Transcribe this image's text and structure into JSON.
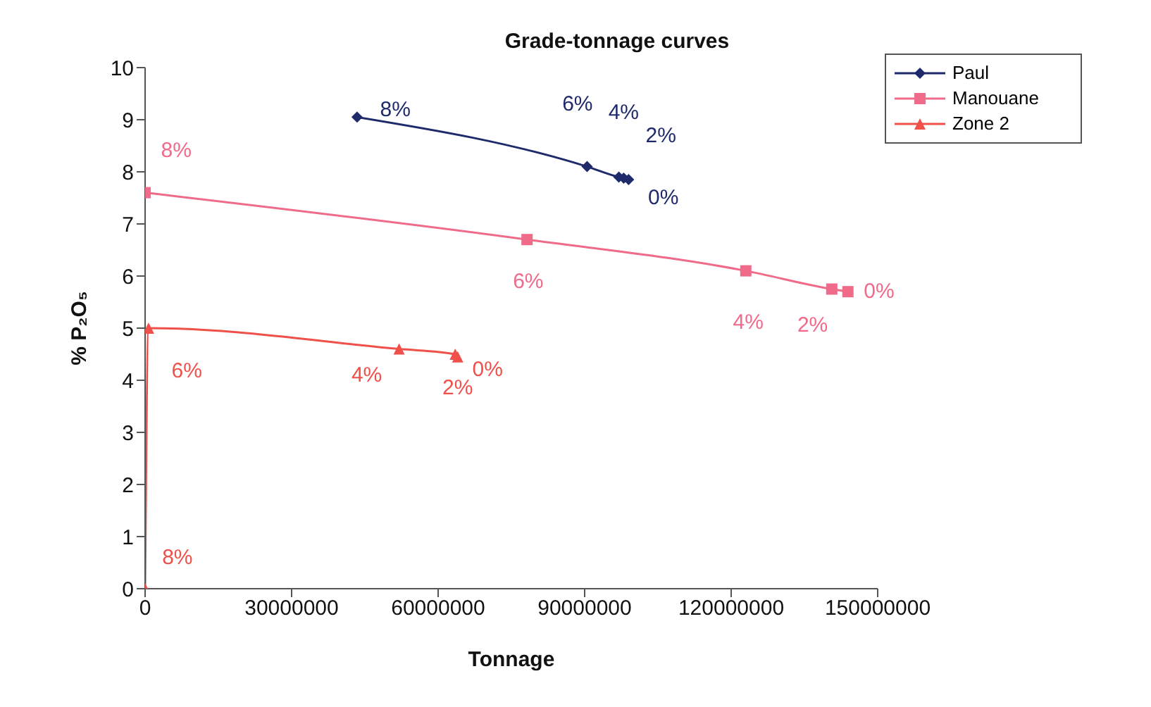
{
  "chart_data": {
    "type": "line",
    "title": "Grade-tonnage curves",
    "xlabel": "Tonnage",
    "ylabel": "% P₂O₅",
    "xlim": [
      0,
      150000000
    ],
    "xticks": [
      0,
      30000000,
      60000000,
      90000000,
      120000000,
      150000000
    ],
    "ylim": [
      0,
      10
    ],
    "yticks": [
      0,
      1,
      2,
      3,
      4,
      5,
      6,
      7,
      8,
      9,
      10
    ],
    "grid": false,
    "legend": "top right",
    "series": [
      {
        "name": "Paul",
        "color": "#1f2a6b",
        "marker": "diamond",
        "x": [
          43400000,
          90500000,
          97000000,
          98000000,
          99000000
        ],
        "values": [
          9.05,
          8.1,
          7.9,
          7.88,
          7.85
        ]
      },
      {
        "name": "Manouane",
        "color": "#f06a8a",
        "marker": "square",
        "x": [
          0,
          78200000,
          123000000,
          140600000,
          143900000
        ],
        "values": [
          7.6,
          6.7,
          6.1,
          5.75,
          5.7
        ]
      },
      {
        "name": "Zone 2",
        "color": "#f0504a",
        "marker": "triangle",
        "x": [
          0,
          700000,
          52000000,
          63500000,
          64000000
        ],
        "values": [
          0,
          5,
          4.6,
          4.5,
          4.45
        ]
      }
    ],
    "annotations": [
      {
        "text": "8%",
        "x": 43400000,
        "y": 9.05
      },
      {
        "text": "6%",
        "x": 90500000,
        "y": 8.1
      },
      {
        "text": "4%",
        "x": 97000000,
        "y": 7.9
      },
      {
        "text": "2%",
        "x": 98000000,
        "y": 7.88
      },
      {
        "text": "0%",
        "x": 99000000,
        "y": 7.85
      },
      {
        "text": "8%",
        "x": 0,
        "y": 7.6
      },
      {
        "text": "6%",
        "x": 78200000,
        "y": 6.7
      },
      {
        "text": "4%",
        "x": 123000000,
        "y": 6.1
      },
      {
        "text": "2%",
        "x": 140600000,
        "y": 5.75
      },
      {
        "text": "0%",
        "x": 143900000,
        "y": 5.7
      },
      {
        "text": "8%",
        "x": 0,
        "y": 0
      },
      {
        "text": "6%",
        "x": 700000,
        "y": 5
      },
      {
        "text": "4%",
        "x": 52000000,
        "y": 4.6
      },
      {
        "text": "2%",
        "x": 63500000,
        "y": 4.5
      },
      {
        "text": "0%",
        "x": 64000000,
        "y": 4.45
      }
    ]
  }
}
